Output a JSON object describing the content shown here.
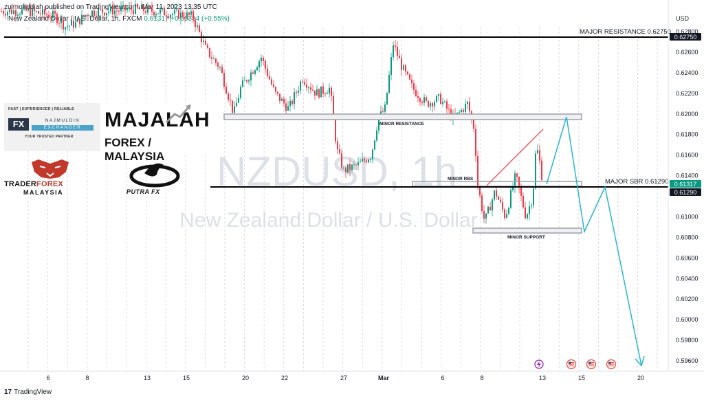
{
  "header": {
    "published": "zulmohddiah published on TradingView.com, Mar 11, 2023 13:35 UTC",
    "symbol": "New Zealand Dollar / U.S. Dollar, 1h, FXCM",
    "last": "0.61317",
    "change": "+0.00334 (+0.55%)"
  },
  "watermark": {
    "symbol": "NZDUSD, 1h",
    "name": "New Zealand Dollar / U.S. Dollar"
  },
  "price_axis": {
    "currency": "USD",
    "ticks": [
      "0.62800",
      "0.62600",
      "0.62400",
      "0.62200",
      "0.62000",
      "0.61800",
      "0.61600",
      "0.61400",
      "0.61000",
      "0.60800",
      "0.60600",
      "0.60400",
      "0.60200",
      "0.60000",
      "0.59800",
      "0.59600"
    ],
    "badges": [
      {
        "text": "0.62750",
        "bg": "#131722",
        "fg": "#ffffff"
      },
      {
        "text": "0.61317",
        "bg": "#089981",
        "fg": "#ffffff"
      },
      {
        "text": "0.61290",
        "bg": "#131722",
        "fg": "#ffffff"
      }
    ]
  },
  "time_axis": {
    "ticks": [
      "6",
      "8",
      "13",
      "15",
      "20",
      "22",
      "27",
      "Mar",
      "6",
      "8",
      "13",
      "15",
      "20"
    ]
  },
  "annotations": {
    "major_resistance": "MAJOR RESISTANCE 0.62750",
    "major_sbr": "MAJOR SBR 0.61290",
    "minor_resistance": "MINOR RESISTANCE",
    "minor_rbs": "MINOR RBS",
    "minor_support": "MINOR SUPPORT"
  },
  "logos": {
    "fx_tagline": "FAST | EXPERIENCED | RELIABLE",
    "fx_mark": "FX",
    "fx_name_top": "NAJMULDIN",
    "fx_name_bottom": "EXCHANGER",
    "fx_trusted": "YOUR TRUSTED PARTNER",
    "majalah_line1": "MAJALAH",
    "majalah_line2": "FOREX / MALAYSIA",
    "trader_a": "TRADER",
    "trader_b": "FOREX",
    "trader_c": "MALAYSIA",
    "putra": "PUTRA FX"
  },
  "footer": {
    "brand": "TradingView",
    "mark": "17"
  },
  "colors": {
    "up": "#089981",
    "down": "#f23645",
    "projection": "#26b5cf",
    "trendline": "#f23645"
  }
}
